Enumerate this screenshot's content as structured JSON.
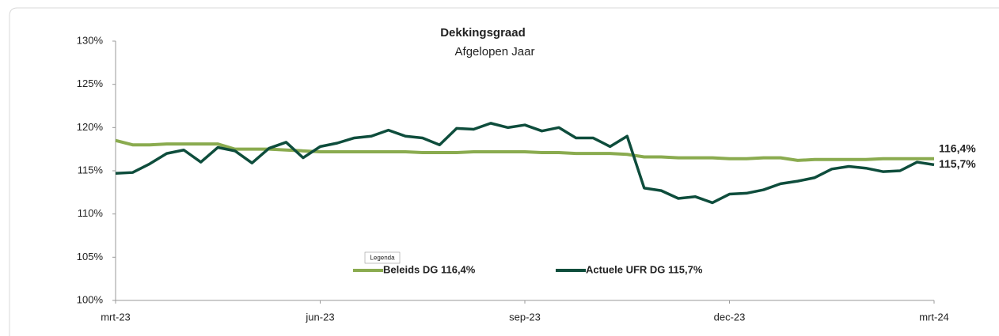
{
  "chart_data": {
    "type": "line",
    "title": "Dekkingsgraad",
    "subtitle": "Afgelopen Jaar",
    "x": [
      0,
      0.25,
      0.5,
      0.75,
      1,
      1.25,
      1.5,
      1.75,
      2,
      2.25,
      2.5,
      2.75,
      3,
      3.25,
      3.5,
      3.75,
      4,
      4.25,
      4.5,
      4.75,
      5,
      5.25,
      5.5,
      5.75,
      6,
      6.25,
      6.5,
      6.75,
      7,
      7.25,
      7.5,
      7.75,
      8,
      8.25,
      8.5,
      8.75,
      9,
      9.25,
      9.5,
      9.75,
      10,
      10.25,
      10.5,
      10.75,
      11,
      11.25,
      11.5,
      11.75,
      12
    ],
    "xlim": [
      0,
      12
    ],
    "xticks": [
      {
        "value": 0,
        "label": "mrt-23"
      },
      {
        "value": 3,
        "label": "jun-23"
      },
      {
        "value": 6,
        "label": "sep-23"
      },
      {
        "value": 9,
        "label": "dec-23"
      },
      {
        "value": 12,
        "label": "mrt-24"
      }
    ],
    "ylim": [
      100,
      130
    ],
    "yticks": [
      {
        "value": 100,
        "label": "100%"
      },
      {
        "value": 105,
        "label": "105%"
      },
      {
        "value": 110,
        "label": "110%"
      },
      {
        "value": 115,
        "label": "115%"
      },
      {
        "value": 120,
        "label": "120%"
      },
      {
        "value": 125,
        "label": "125%"
      },
      {
        "value": 130,
        "label": "130%"
      }
    ],
    "grid": false,
    "legend_title": "Legenda",
    "legend": "bottom",
    "series": [
      {
        "name": "Beleids DG 116,4%",
        "color": "#8aab4f",
        "end_label": "116,4%",
        "values": [
          118.5,
          118.0,
          118.0,
          118.1,
          118.1,
          118.1,
          118.1,
          117.5,
          117.5,
          117.5,
          117.4,
          117.3,
          117.2,
          117.2,
          117.2,
          117.2,
          117.2,
          117.2,
          117.1,
          117.1,
          117.1,
          117.2,
          117.2,
          117.2,
          117.2,
          117.1,
          117.1,
          117.0,
          117.0,
          117.0,
          116.9,
          116.6,
          116.6,
          116.5,
          116.5,
          116.5,
          116.4,
          116.4,
          116.5,
          116.5,
          116.2,
          116.3,
          116.3,
          116.3,
          116.3,
          116.4,
          116.4,
          116.4,
          116.4
        ]
      },
      {
        "name": "Actuele UFR DG 115,7%",
        "color": "#0e4d3c",
        "end_label": "115,7%",
        "values": [
          114.7,
          114.8,
          115.8,
          117.0,
          117.4,
          116.0,
          117.7,
          117.3,
          115.9,
          117.6,
          118.3,
          116.5,
          117.8,
          118.2,
          118.8,
          119.0,
          119.7,
          119.0,
          118.8,
          118.0,
          119.9,
          119.8,
          120.5,
          120.0,
          120.3,
          119.6,
          120.0,
          118.8,
          118.8,
          117.8,
          119.0,
          113.0,
          112.7,
          111.8,
          112.0,
          111.3,
          112.3,
          112.4,
          112.8,
          113.5,
          113.8,
          114.2,
          115.2,
          115.5,
          115.3,
          114.9,
          115.0,
          116.0,
          115.7
        ]
      }
    ]
  }
}
